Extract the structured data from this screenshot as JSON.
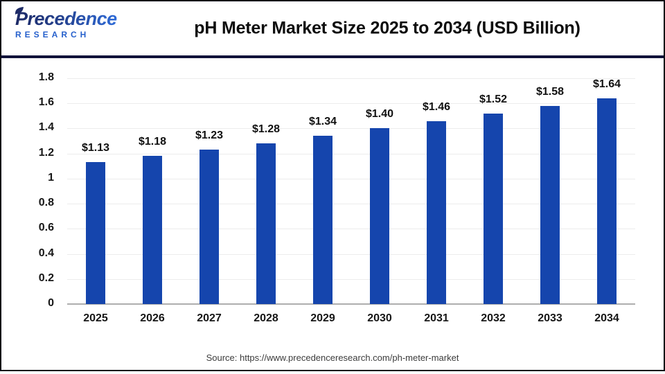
{
  "header": {
    "logo": {
      "name": "Precedence",
      "subtitle": "RESEARCH"
    },
    "title": "pH Meter Market Size 2025 to 2034 (USD Billion)"
  },
  "chart_data": {
    "type": "bar",
    "title": "pH Meter Market Size 2025 to 2034 (USD Billion)",
    "categories": [
      "2025",
      "2026",
      "2027",
      "2028",
      "2029",
      "2030",
      "2031",
      "2032",
      "2033",
      "2034"
    ],
    "values": [
      1.13,
      1.18,
      1.23,
      1.28,
      1.34,
      1.4,
      1.46,
      1.52,
      1.58,
      1.64
    ],
    "value_labels": [
      "$1.13",
      "$1.18",
      "$1.23",
      "$1.28",
      "$1.34",
      "$1.40",
      "$1.46",
      "$1.52",
      "$1.58",
      "$1.64"
    ],
    "xlabel": "",
    "ylabel": "",
    "ylim": [
      0,
      1.8
    ],
    "yticks": [
      "0",
      "0.2",
      "0.4",
      "0.6",
      "0.8",
      "1",
      "1.2",
      "1.4",
      "1.6",
      "1.8"
    ],
    "grid": true,
    "legend_position": "none",
    "bar_color": "#1545ad",
    "grid_color": "#ececec",
    "axis_line_color": "#aeaeae"
  },
  "colors": {
    "accent_blue": "#1545ad",
    "separator_navy": "#10123a",
    "logo_navy": "#1d2a66",
    "logo_blue": "#2e6bd8"
  },
  "footer": {
    "source": "Source: https://www.precedenceresearch.com/ph-meter-market"
  }
}
